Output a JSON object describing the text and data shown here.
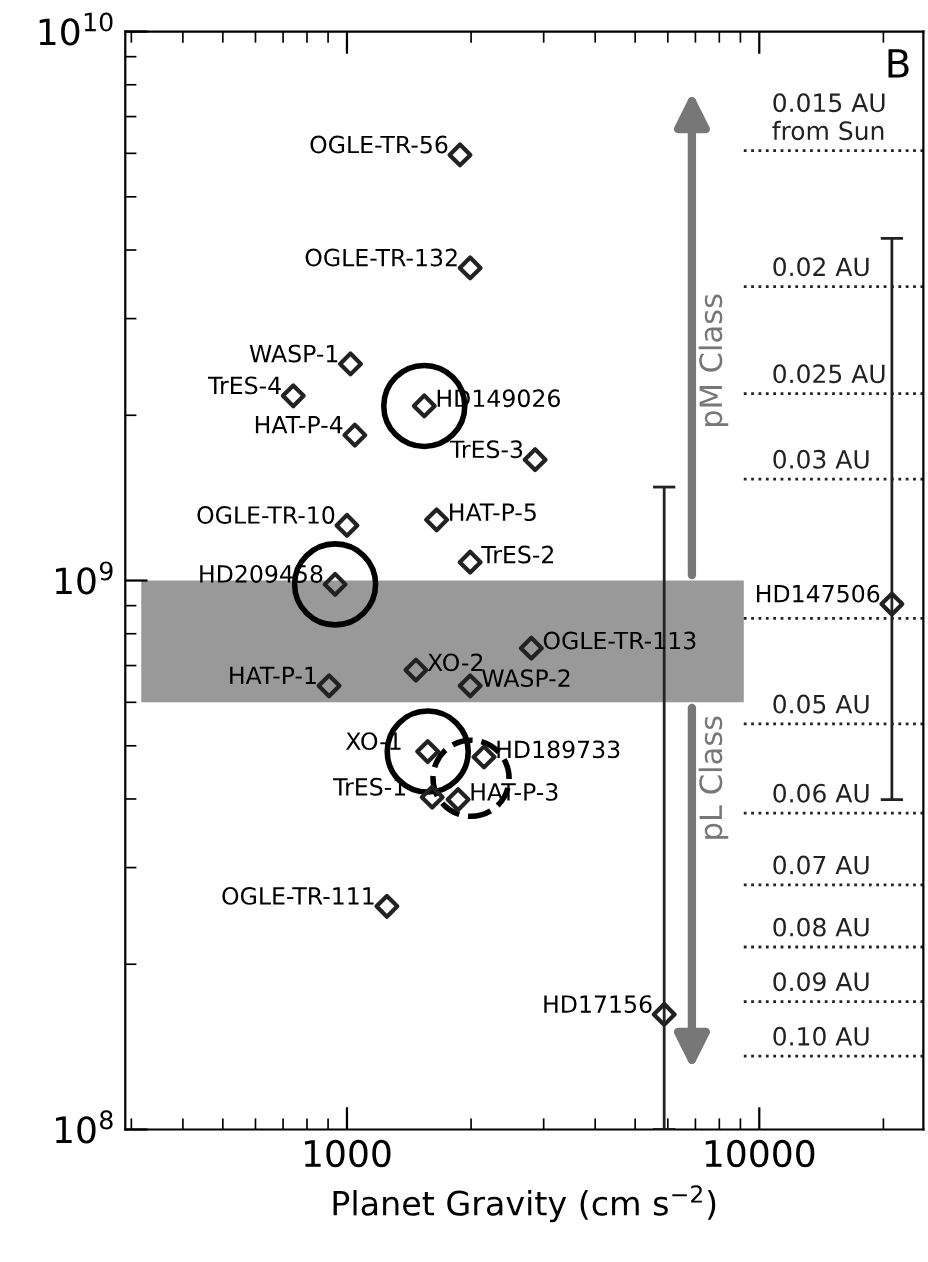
{
  "chart_data": {
    "type": "scatter",
    "xlabel": "Planet Gravity (cm s$^{−2}$)",
    "log": "xy",
    "xlim": [
      290,
      25000
    ],
    "ylim": [
      100000000.0,
      10000000000.0
    ],
    "xticks": [
      1000,
      10000
    ],
    "yticks": [
      {
        "value": 100000000.0,
        "label": "10$^{8}$"
      },
      {
        "value": 1000000000.0,
        "label": "10$^{9}$"
      },
      {
        "value": 10000000000.0,
        "label": "10$^{10}$"
      }
    ],
    "grid": false,
    "marker": "diamond",
    "series": [
      {
        "color": "#222222",
        "x": [
          1880,
          1990,
          1020,
          741,
          1045,
          1540,
          2860,
          1650,
          1990,
          1000,
          936,
          20970,
          2800,
          1470,
          905,
          1990,
          1570,
          2150,
          1610,
          1860,
          1250,
          5880
        ],
        "values": [
          5960000000.0,
          3710000000.0,
          2480000000.0,
          2170000000.0,
          1840000000.0,
          2080000000.0,
          1660000000.0,
          1290000000.0,
          1080000000.0,
          1260000000.0,
          984000000.0,
          906000000.0,
          753000000.0,
          687000000.0,
          643000000.0,
          643000000.0,
          488000000.0,
          477000000.0,
          403000000.0,
          399000000.0,
          255000000.0,
          162000000.0
        ],
        "errors": [
          null,
          null,
          null,
          null,
          null,
          null,
          null,
          null,
          null,
          null,
          null,
          [
            399000000.0,
            4200000000.0
          ],
          null,
          null,
          null,
          null,
          null,
          null,
          null,
          null,
          null,
          [
            100000000.0,
            1480000000.0
          ]
        ]
      }
    ],
    "bands": [
      {
        "axis": "y",
        "from": 600000000.0,
        "to": 1000000000.0,
        "color": "#999999"
      }
    ],
    "ref_lines": [
      {
        "axis": "y",
        "value": 6070000000.0,
        "label": "0.015 AU\nfrom Sun",
        "line_style": "dotted"
      },
      {
        "axis": "y",
        "value": 3430000000.0,
        "label": "0.02 AU",
        "line_style": "dotted"
      },
      {
        "axis": "y",
        "value": 2190000000.0,
        "label": "0.025 AU",
        "line_style": "dotted"
      },
      {
        "axis": "y",
        "value": 1530000000.0,
        "label": "0.03 AU",
        "line_style": "dotted"
      },
      {
        "axis": "y",
        "value": 853000000.0,
        "label": null,
        "line_style": "dotted"
      },
      {
        "axis": "y",
        "value": 548000000.0,
        "label": "0.05 AU",
        "line_style": "dotted"
      },
      {
        "axis": "y",
        "value": 377000000.0,
        "label": "0.06 AU",
        "line_style": "dotted"
      },
      {
        "axis": "y",
        "value": 279000000.0,
        "label": "0.07 AU",
        "line_style": "dotted"
      },
      {
        "axis": "y",
        "value": 215000000.0,
        "label": "0.08 AU",
        "line_style": "dotted"
      },
      {
        "axis": "y",
        "value": 171000000.0,
        "label": "0.09 AU",
        "line_style": "dotted"
      },
      {
        "axis": "y",
        "value": 136000000.0,
        "label": "0.10 AU",
        "line_style": "dotted"
      }
    ],
    "annotations": [
      "B",
      "pM Class",
      "pL Class",
      {
        "text": "OGLE-TR-56",
        "x": 1880,
        "y": 5960000000.0
      },
      {
        "text": "OGLE-TR-132",
        "x": 1990,
        "y": 3710000000.0
      },
      {
        "text": "WASP-1",
        "x": 1020,
        "y": 2480000000.0
      },
      {
        "text": "TrES-4",
        "x": 741,
        "y": 2170000000.0
      },
      {
        "text": "HAT-P-4",
        "x": 1045,
        "y": 1840000000.0
      },
      {
        "text": "HD149026",
        "x": 1540,
        "y": 2080000000.0
      },
      {
        "text": "TrES-3",
        "x": 2860,
        "y": 1660000000.0
      },
      {
        "text": "HAT-P-5",
        "x": 1650,
        "y": 1290000000.0
      },
      {
        "text": "TrES-2",
        "x": 1990,
        "y": 1080000000.0
      },
      {
        "text": "OGLE-TR-10",
        "x": 1000,
        "y": 1260000000.0
      },
      {
        "text": "HD209458",
        "x": 936,
        "y": 984000000.0
      },
      {
        "text": "HD147506",
        "x": 20970,
        "y": 906000000.0
      },
      {
        "text": "OGLE-TR-113",
        "x": 2800,
        "y": 753000000.0
      },
      {
        "text": "XO-2",
        "x": 1470,
        "y": 687000000.0
      },
      {
        "text": "HAT-P-1",
        "x": 905,
        "y": 643000000.0
      },
      {
        "text": "WASP-2",
        "x": 1990,
        "y": 643000000.0
      },
      {
        "text": "XO-1",
        "x": 1570,
        "y": 488000000.0
      },
      {
        "text": "HD189733",
        "x": 2150,
        "y": 477000000.0
      },
      {
        "text": "TrES-1",
        "x": 1610,
        "y": 403000000.0
      },
      {
        "text": "HAT-P-3",
        "x": 1860,
        "y": 399000000.0
      },
      {
        "text": "OGLE-TR-111",
        "x": 1250,
        "y": 255000000.0
      },
      {
        "text": "HD17156",
        "x": 5880,
        "y": 162000000.0
      }
    ]
  }
}
